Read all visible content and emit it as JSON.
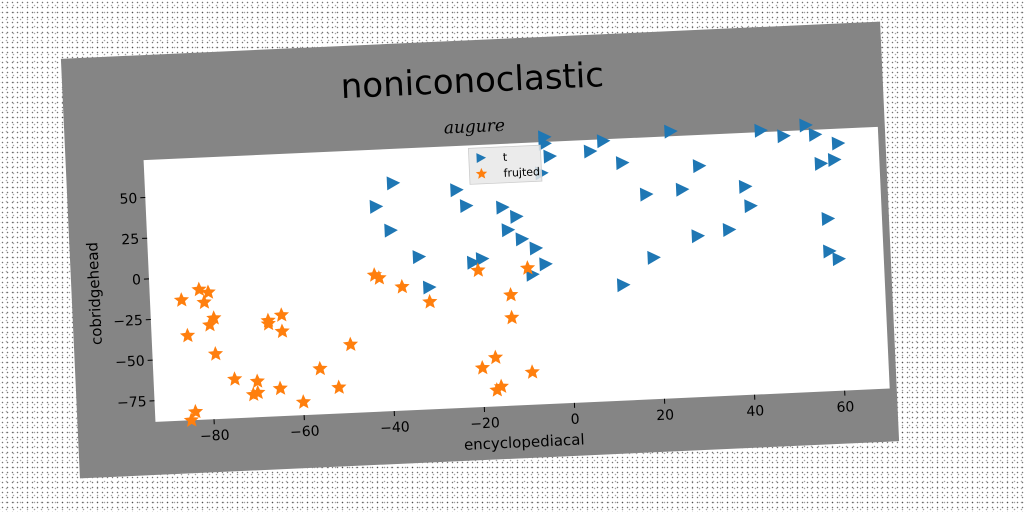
{
  "chart_data": {
    "type": "scatter",
    "title": "noniconoclastic",
    "subtitle": "augure",
    "xlabel": "encyclopediacal",
    "ylabel": "cobridgehead",
    "xlim": [
      -93,
      70
    ],
    "ylim": [
      -88,
      73
    ],
    "xticks": [
      -80,
      -60,
      -40,
      -20,
      0,
      20,
      40,
      60
    ],
    "yticks": [
      -75,
      -50,
      -25,
      0,
      25,
      50
    ],
    "grid": false,
    "legend_position": "top-center",
    "series": [
      {
        "name": "t",
        "marker": "triangle-right",
        "color": "#1f77b4",
        "x": [
          -4,
          -38,
          -42,
          -39,
          -33,
          -31,
          -22,
          -24,
          -19,
          -21,
          -13,
          -10,
          -11,
          -8,
          -5,
          -7,
          -14,
          -5,
          -4,
          -3,
          6,
          9,
          13,
          12,
          18,
          19,
          26,
          24,
          29,
          30,
          36,
          41,
          40,
          44,
          49,
          54,
          56,
          57,
          58,
          60,
          61,
          58,
          60
        ],
        "y": [
          72,
          52,
          38,
          23,
          6,
          -13,
          36,
          46,
          3,
          1,
          20,
          14,
          28,
          -8,
          -2,
          8,
          34,
          54,
          76,
          64,
          66,
          72,
          58,
          -17,
          38,
          -1,
          40,
          76,
          11,
          54,
          14,
          28,
          40,
          74,
          70,
          76,
          70,
          52,
          18,
          54,
          64,
          -2,
          -7
        ]
      },
      {
        "name": "frujted",
        "marker": "star",
        "color": "#ff7f0e",
        "x": [
          -86,
          -82,
          -81,
          -79,
          -85,
          -75,
          -70,
          -70,
          -67,
          -67,
          -64,
          -64,
          -71,
          -65,
          -60,
          -56,
          -52,
          -49,
          -43,
          -42,
          -37,
          -31,
          -20,
          -9,
          -13,
          -13,
          -17,
          -20,
          -16,
          -17,
          -9,
          -80,
          -79,
          -84,
          -85,
          -80
        ],
        "y": [
          -14,
          -8,
          -16,
          -26,
          -36,
          -64,
          -66,
          -73,
          -29,
          -31,
          -26,
          -36,
          -74,
          -71,
          -80,
          -60,
          -72,
          -46,
          -4,
          -6,
          -12,
          -22,
          -4,
          -4,
          -20,
          -34,
          -58,
          -64,
          -76,
          -78,
          -68,
          -30,
          -48,
          -83,
          -88,
          -10
        ]
      }
    ]
  }
}
